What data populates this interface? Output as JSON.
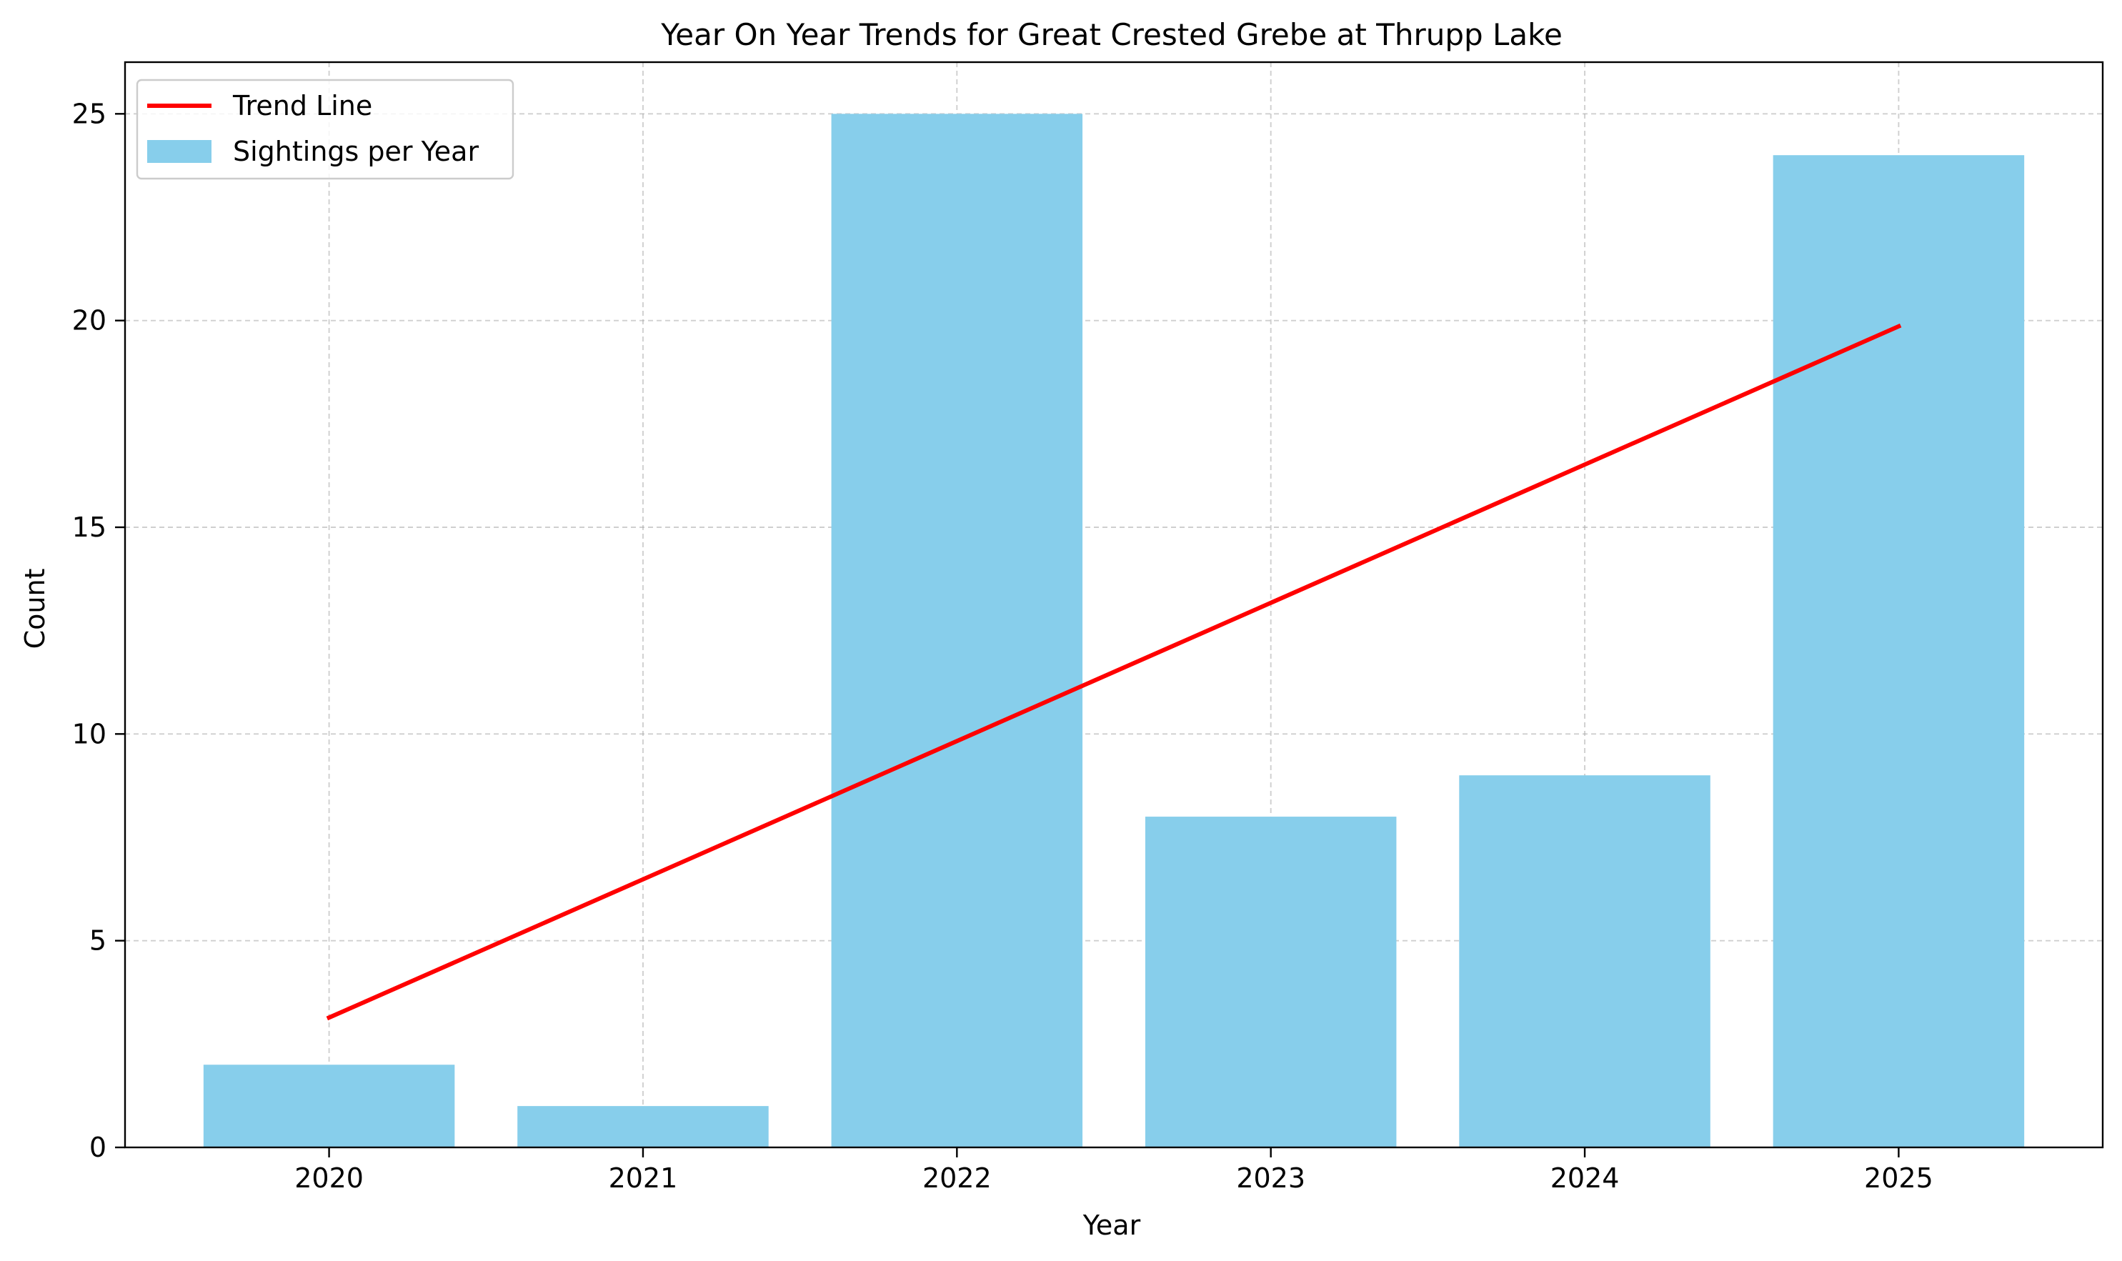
{
  "chart_data": {
    "type": "bar",
    "title": "Year On Year Trends for Great Crested Grebe at Thrupp Lake",
    "xlabel": "Year",
    "ylabel": "Count",
    "categories": [
      "2020",
      "2021",
      "2022",
      "2023",
      "2024",
      "2025"
    ],
    "yticks": [
      "0",
      "5",
      "10",
      "15",
      "20",
      "25"
    ],
    "ylim": [
      0,
      26.25
    ],
    "grid": true,
    "legend_position": "top-left",
    "series": [
      {
        "name": "Sightings per Year",
        "kind": "bar",
        "color": "#87ceeb",
        "values": [
          2,
          1,
          25,
          8,
          9,
          24
        ]
      },
      {
        "name": "Trend Line",
        "kind": "line",
        "color": "#ff0000",
        "start": {
          "x": "2020",
          "y": 3.14
        },
        "end": {
          "x": "2025",
          "y": 19.86
        }
      }
    ]
  }
}
